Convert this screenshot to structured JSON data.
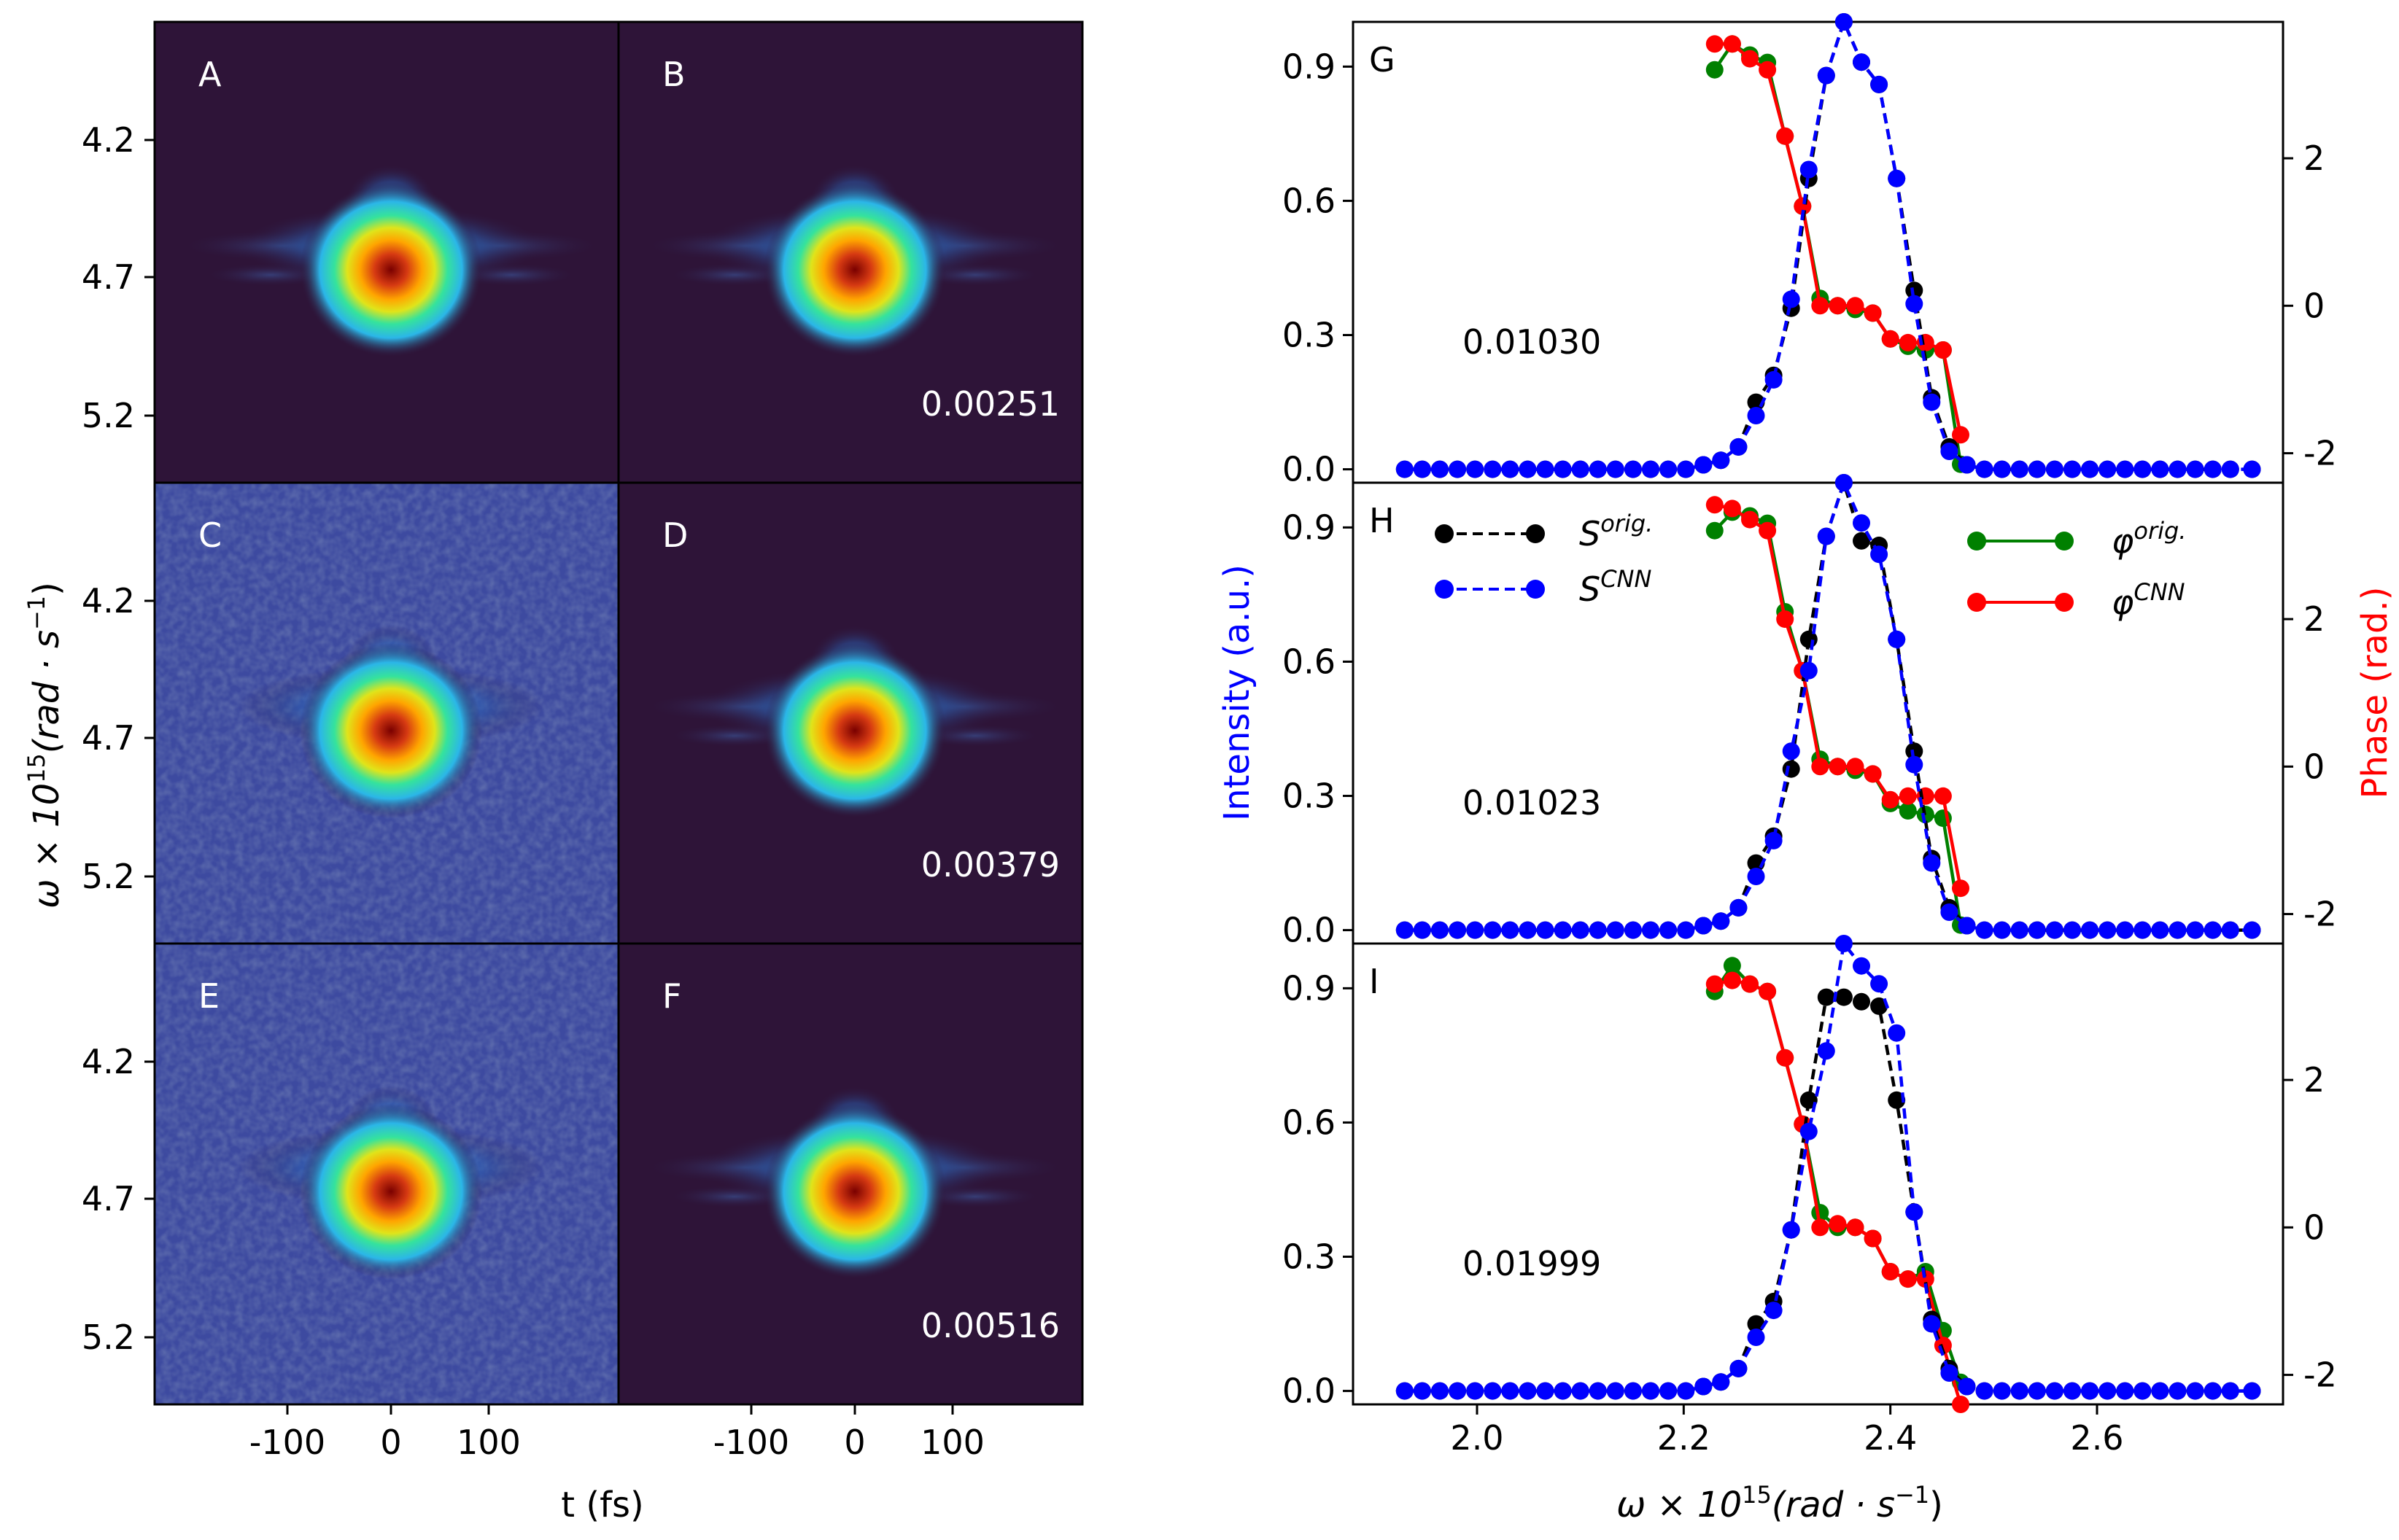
{
  "left_panels": {
    "labels": [
      "A",
      "B",
      "C",
      "D",
      "E",
      "F"
    ],
    "values": {
      "B": "0.00251",
      "D": "0.00379",
      "F": "0.00516"
    },
    "y_ticks": [
      "4.2",
      "4.7",
      "5.2"
    ],
    "x_ticks": [
      "-100",
      "0",
      "100"
    ],
    "ylabel": "ω × 10",
    "ylabel_sup": "15",
    "ylabel_unit": "(rad · s",
    "ylabel_unit_sup": "−1",
    "ylabel_close": ")",
    "xlabel": "t (fs)",
    "colors": {
      "background": "#2e1438",
      "noise": "#3d4aa0"
    }
  },
  "chart_data": {
    "type": "line",
    "panels": [
      {
        "label": "G",
        "value": "0.01030"
      },
      {
        "label": "H",
        "value": "0.01023"
      },
      {
        "label": "I",
        "value": "0.01999"
      }
    ],
    "xlabel": "ω × 10",
    "xlabel_sup": "15",
    "xlabel_unit": "(rad · s",
    "xlabel_unit_sup": "−1",
    "xlabel_close": ")",
    "ylabel_left": "Intensity (a.u.)",
    "ylabel_right": "Phase (rad.)",
    "xlim": [
      1.88,
      2.78
    ],
    "ylim_left": [
      -0.03,
      1.0
    ],
    "ylim_right": [
      -2.4,
      3.85
    ],
    "x_ticks": [
      "2.0",
      "2.2",
      "2.4",
      "2.6"
    ],
    "x_tick_values": [
      2.0,
      2.2,
      2.4,
      2.6
    ],
    "y_left_ticks": [
      "0.0",
      "0.3",
      "0.6",
      "0.9"
    ],
    "y_left_tick_values": [
      0.0,
      0.3,
      0.6,
      0.9
    ],
    "y_right_ticks": [
      "-2",
      "0",
      "2"
    ],
    "y_right_tick_values": [
      -2,
      0,
      2
    ],
    "legend": {
      "s_orig": "S",
      "s_orig_sup": "orig.",
      "s_cnn": "S",
      "s_cnn_sup": "CNN",
      "p_orig": "φ",
      "p_orig_sup": "orig.",
      "p_cnn": "φ",
      "p_cnn_sup": "CNN"
    },
    "colors": {
      "s_orig": "#000000",
      "s_cnn": "#0000ff",
      "p_orig": "#008000",
      "p_cnn": "#ff0000"
    },
    "x_intensity": [
      1.93,
      1.947,
      1.964,
      1.981,
      1.998,
      2.015,
      2.032,
      2.049,
      2.066,
      2.083,
      2.1,
      2.117,
      2.134,
      2.151,
      2.168,
      2.185,
      2.202,
      2.219,
      2.236,
      2.253,
      2.27,
      2.287,
      2.304,
      2.321,
      2.338,
      2.355,
      2.372,
      2.389,
      2.406,
      2.423,
      2.44,
      2.457,
      2.474,
      2.491,
      2.508,
      2.525,
      2.542,
      2.559,
      2.576,
      2.593,
      2.61,
      2.627,
      2.644,
      2.661,
      2.678,
      2.695,
      2.712,
      2.729,
      2.75
    ],
    "x_phase": [
      2.23,
      2.247,
      2.264,
      2.281,
      2.298,
      2.315,
      2.332,
      2.349,
      2.366,
      2.383,
      2.4,
      2.417,
      2.434,
      2.451,
      2.468
    ],
    "s_orig": [
      [
        0,
        0,
        0,
        0,
        0,
        0,
        0,
        0,
        0,
        0,
        0,
        0,
        0,
        0,
        0,
        0,
        0,
        0.01,
        0.02,
        0.05,
        0.15,
        0.21,
        0.36,
        0.65,
        0.88,
        1.0,
        0.91,
        0.86,
        0.65,
        0.4,
        0.16,
        0.05,
        0.01,
        0,
        0,
        0,
        0,
        0,
        0,
        0,
        0,
        0,
        0,
        0,
        0,
        0,
        0,
        0,
        0
      ],
      [
        0,
        0,
        0,
        0,
        0,
        0,
        0,
        0,
        0,
        0,
        0,
        0,
        0,
        0,
        0,
        0,
        0,
        0.01,
        0.02,
        0.05,
        0.15,
        0.21,
        0.36,
        0.65,
        0.88,
        1.0,
        0.87,
        0.86,
        0.65,
        0.4,
        0.16,
        0.05,
        0.01,
        0,
        0,
        0,
        0,
        0,
        0,
        0,
        0,
        0,
        0,
        0,
        0,
        0,
        0,
        0,
        0
      ],
      [
        0,
        0,
        0,
        0,
        0,
        0,
        0,
        0,
        0,
        0,
        0,
        0,
        0,
        0,
        0,
        0,
        0,
        0.01,
        0.02,
        0.05,
        0.15,
        0.2,
        0.36,
        0.65,
        0.88,
        0.88,
        0.87,
        0.86,
        0.65,
        0.4,
        0.16,
        0.05,
        0.01,
        0,
        0,
        0,
        0,
        0,
        0,
        0,
        0,
        0,
        0,
        0,
        0,
        0,
        0,
        0,
        0
      ]
    ],
    "s_cnn": [
      [
        0,
        0,
        0,
        0,
        0,
        0,
        0,
        0,
        0,
        0,
        0,
        0,
        0,
        0,
        0,
        0,
        0,
        0.01,
        0.02,
        0.05,
        0.12,
        0.2,
        0.38,
        0.67,
        0.88,
        1.0,
        0.91,
        0.86,
        0.65,
        0.37,
        0.15,
        0.04,
        0.01,
        0,
        0,
        0,
        0,
        0,
        0,
        0,
        0,
        0,
        0,
        0,
        0,
        0,
        0,
        0,
        0
      ],
      [
        0,
        0,
        0,
        0,
        0,
        0,
        0,
        0,
        0,
        0,
        0,
        0,
        0,
        0,
        0,
        0,
        0,
        0.01,
        0.02,
        0.05,
        0.12,
        0.2,
        0.4,
        0.58,
        0.88,
        1.0,
        0.91,
        0.84,
        0.65,
        0.37,
        0.15,
        0.04,
        0.01,
        0,
        0,
        0,
        0,
        0,
        0,
        0,
        0,
        0,
        0,
        0,
        0,
        0,
        0,
        0,
        0
      ],
      [
        0,
        0,
        0,
        0,
        0,
        0,
        0,
        0,
        0,
        0,
        0,
        0,
        0,
        0,
        0,
        0,
        0,
        0.01,
        0.02,
        0.05,
        0.12,
        0.18,
        0.36,
        0.58,
        0.76,
        1.0,
        0.95,
        0.91,
        0.8,
        0.4,
        0.15,
        0.04,
        0.01,
        0,
        0,
        0,
        0,
        0,
        0,
        0,
        0,
        0,
        0,
        0,
        0,
        0,
        0,
        0,
        0
      ]
    ],
    "phase_orig": [
      [
        3.2,
        3.55,
        3.4,
        3.3,
        2.3,
        1.35,
        0.1,
        0.0,
        -0.05,
        -0.1,
        -0.45,
        -0.55,
        -0.6,
        -0.6,
        -2.15
      ],
      [
        3.2,
        3.45,
        3.4,
        3.3,
        2.1,
        1.3,
        0.1,
        0.0,
        -0.05,
        -0.1,
        -0.5,
        -0.6,
        -0.65,
        -0.7,
        -2.15
      ],
      [
        3.2,
        3.55,
        3.3,
        3.2,
        2.3,
        1.4,
        0.2,
        0.0,
        0.0,
        -0.15,
        -0.6,
        -0.7,
        -0.6,
        -1.4,
        -2.1
      ]
    ],
    "phase_cnn": [
      [
        3.55,
        3.55,
        3.35,
        3.2,
        2.3,
        1.35,
        0.0,
        0.0,
        0.0,
        -0.1,
        -0.45,
        -0.5,
        -0.5,
        -0.6,
        -1.75
      ],
      [
        3.55,
        3.5,
        3.35,
        3.2,
        2.0,
        1.3,
        0.0,
        0.0,
        0.0,
        -0.1,
        -0.45,
        -0.4,
        -0.4,
        -0.4,
        -1.65
      ],
      [
        3.3,
        3.35,
        3.3,
        3.2,
        2.3,
        1.4,
        0.0,
        0.05,
        0.0,
        -0.15,
        -0.6,
        -0.7,
        -0.7,
        -1.6,
        -2.4
      ]
    ]
  }
}
